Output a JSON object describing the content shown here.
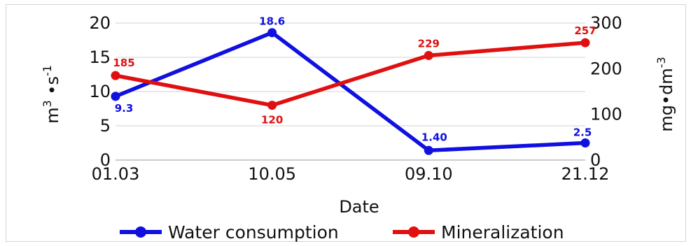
{
  "chart_data": {
    "type": "line",
    "categories": [
      "01.03",
      "10.05",
      "09.10",
      "21.12"
    ],
    "xlabel": "Date",
    "y_left": {
      "label_base": "m",
      "label_sup1": "3",
      "label_mid": " •s",
      "label_sup2": "-1",
      "ylim": [
        0,
        20
      ],
      "ticks": [
        0,
        5,
        10,
        15,
        20
      ]
    },
    "y_right": {
      "label_base": "mg•dm",
      "label_sup": "-3",
      "ylim": [
        0,
        300
      ],
      "ticks": [
        0,
        100,
        200,
        300
      ]
    },
    "grid": true,
    "legend_position": "bottom",
    "series": [
      {
        "name": "Water consumption",
        "axis": "left",
        "color": "#1010e0",
        "values": [
          9.3,
          18.6,
          1.4,
          2.5
        ],
        "labels": [
          "9.3",
          "18.6",
          "1.40",
          "2.5"
        ]
      },
      {
        "name": "Mineralization",
        "axis": "right",
        "color": "#e01010",
        "values": [
          185,
          120,
          229,
          257
        ],
        "labels": [
          "185",
          "120",
          "229",
          "257"
        ]
      }
    ]
  }
}
